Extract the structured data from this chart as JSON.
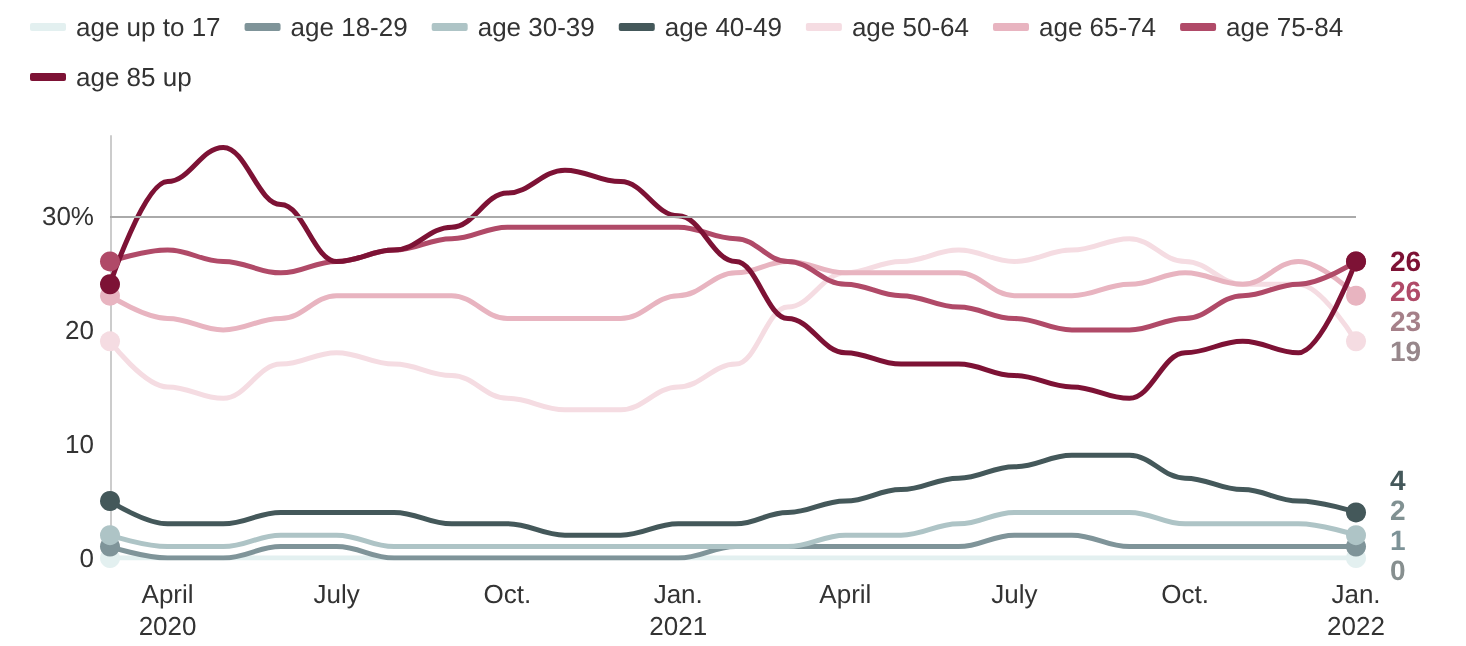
{
  "chart_data": {
    "type": "line",
    "x": [
      "2020-03",
      "2020-04",
      "2020-05",
      "2020-06",
      "2020-07",
      "2020-08",
      "2020-09",
      "2020-10",
      "2020-11",
      "2020-12",
      "2021-01",
      "2021-02",
      "2021-03",
      "2021-04",
      "2021-05",
      "2021-06",
      "2021-07",
      "2021-08",
      "2021-09",
      "2021-10",
      "2021-11",
      "2021-12",
      "2022-01"
    ],
    "series": [
      {
        "name": "age up to 17",
        "color": "#e3f0f0",
        "values": [
          0,
          0,
          0,
          0,
          0,
          0,
          0,
          0,
          0,
          0,
          0,
          0,
          0,
          0,
          0,
          0,
          0,
          0,
          0,
          0,
          0,
          0,
          0
        ],
        "value_labels": [
          null,
          null,
          null,
          null,
          null,
          null,
          null,
          null,
          null,
          null,
          null,
          null,
          null,
          null,
          null,
          null,
          null,
          null,
          null,
          null,
          null,
          null,
          "0"
        ]
      },
      {
        "name": "age 18-29",
        "color": "#7f9499",
        "values": [
          1,
          0,
          0,
          1,
          1,
          0,
          0,
          0,
          0,
          0,
          0,
          1,
          1,
          1,
          1,
          1,
          2,
          2,
          1,
          1,
          1,
          1,
          1
        ],
        "value_labels": [
          null,
          null,
          null,
          null,
          null,
          null,
          null,
          null,
          null,
          null,
          null,
          null,
          null,
          null,
          null,
          null,
          null,
          null,
          null,
          null,
          null,
          null,
          "1"
        ]
      },
      {
        "name": "age 30-39",
        "color": "#aec4c6",
        "values": [
          2,
          1,
          1,
          2,
          2,
          1,
          1,
          1,
          1,
          1,
          1,
          1,
          1,
          2,
          2,
          3,
          4,
          4,
          4,
          3,
          3,
          3,
          2
        ],
        "value_labels": [
          null,
          null,
          null,
          null,
          null,
          null,
          null,
          null,
          null,
          null,
          null,
          null,
          null,
          null,
          null,
          null,
          null,
          null,
          null,
          null,
          null,
          null,
          "2"
        ]
      },
      {
        "name": "age 40-49",
        "color": "#44585a",
        "values": [
          5,
          3,
          3,
          4,
          4,
          4,
          3,
          3,
          2,
          2,
          3,
          3,
          4,
          5,
          6,
          7,
          8,
          9,
          9,
          7,
          6,
          5,
          4
        ],
        "value_labels": [
          null,
          null,
          null,
          null,
          null,
          null,
          null,
          null,
          null,
          null,
          null,
          null,
          null,
          null,
          null,
          null,
          null,
          null,
          null,
          null,
          null,
          null,
          "4"
        ]
      },
      {
        "name": "age 50-64",
        "color": "#f5dce2",
        "values": [
          19,
          15,
          14,
          17,
          18,
          17,
          16,
          14,
          13,
          13,
          15,
          17,
          22,
          25,
          26,
          27,
          26,
          27,
          28,
          26,
          24,
          24,
          19
        ],
        "value_labels": [
          null,
          null,
          null,
          null,
          null,
          null,
          null,
          null,
          null,
          null,
          null,
          null,
          null,
          null,
          null,
          null,
          null,
          null,
          null,
          null,
          null,
          null,
          "19"
        ]
      },
      {
        "name": "age 65-74",
        "color": "#e8b4c0",
        "values": [
          23,
          21,
          20,
          21,
          23,
          23,
          23,
          21,
          21,
          21,
          23,
          25,
          26,
          25,
          25,
          25,
          23,
          23,
          24,
          25,
          24,
          26,
          23
        ],
        "value_labels": [
          null,
          null,
          null,
          null,
          null,
          null,
          null,
          null,
          null,
          null,
          null,
          null,
          null,
          null,
          null,
          null,
          null,
          null,
          null,
          null,
          null,
          null,
          "23"
        ]
      },
      {
        "name": "age 75-84",
        "color": "#b04a68",
        "values": [
          26,
          27,
          26,
          25,
          26,
          27,
          28,
          29,
          29,
          29,
          29,
          28,
          26,
          24,
          23,
          22,
          21,
          20,
          20,
          21,
          23,
          24,
          26
        ],
        "value_labels": [
          null,
          null,
          null,
          null,
          null,
          null,
          null,
          null,
          null,
          null,
          null,
          null,
          null,
          null,
          null,
          null,
          null,
          null,
          null,
          null,
          null,
          null,
          "26"
        ]
      },
      {
        "name": "age 85 up",
        "color": "#7d1235",
        "values": [
          24,
          33,
          36,
          31,
          26,
          27,
          29,
          32,
          34,
          33,
          30,
          26,
          21,
          18,
          17,
          17,
          16,
          15,
          14,
          18,
          19,
          18,
          26
        ],
        "value_labels": [
          null,
          null,
          null,
          null,
          null,
          null,
          null,
          null,
          null,
          null,
          null,
          null,
          null,
          null,
          null,
          null,
          null,
          null,
          null,
          null,
          null,
          null,
          "26"
        ]
      }
    ],
    "xlim": [
      "2020-03",
      "2022-01"
    ],
    "xticks": [
      {
        "value": "2020-04",
        "label": "April\n2020"
      },
      {
        "value": "2020-07",
        "label": "July"
      },
      {
        "value": "2020-10",
        "label": "Oct."
      },
      {
        "value": "2021-01",
        "label": "Jan.\n2021"
      },
      {
        "value": "2021-04",
        "label": "April"
      },
      {
        "value": "2021-07",
        "label": "July"
      },
      {
        "value": "2021-10",
        "label": "Oct."
      },
      {
        "value": "2022-01",
        "label": "Jan.\n2022"
      }
    ],
    "ylim": [
      0,
      37
    ],
    "yticks": [
      0,
      10,
      20,
      {
        "value": 30,
        "label": "30%"
      }
    ],
    "ref_lines": [
      {
        "axis": "y",
        "value": 30,
        "color": "#aaaaaa"
      }
    ],
    "grid": false,
    "legend": "top left",
    "line_style": "solid"
  }
}
